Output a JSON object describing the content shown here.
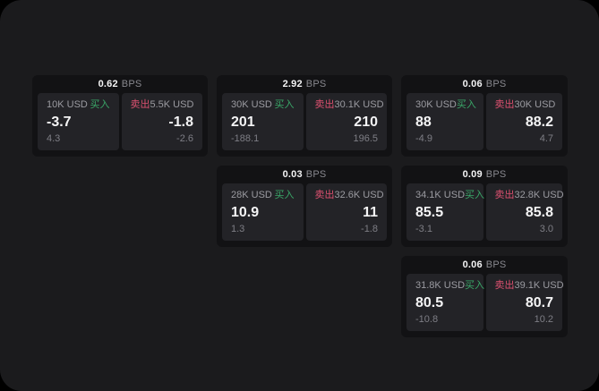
{
  "labels": {
    "buy": "买入",
    "sell": "卖出",
    "bps_unit": "BPS"
  },
  "colors": {
    "green": "#3aa768",
    "red": "#dd5170",
    "page_bg": "#1b1b1d",
    "card_bg": "#121214",
    "panel_bg": "#232327"
  },
  "cards": [
    {
      "row": 1,
      "col": 1,
      "bps": "0.62",
      "buy": {
        "amount": "10K USD",
        "main": "-3.7",
        "sub": "4.3"
      },
      "sell": {
        "amount": "5.5K USD",
        "main": "-1.8",
        "sub": "-2.6"
      }
    },
    {
      "row": 1,
      "col": 2,
      "bps": "2.92",
      "buy": {
        "amount": "30K USD",
        "main": "201",
        "sub": "-188.1"
      },
      "sell": {
        "amount": "30.1K USD",
        "main": "210",
        "sub": "196.5"
      }
    },
    {
      "row": 1,
      "col": 3,
      "bps": "0.06",
      "buy": {
        "amount": "30K USD",
        "main": "88",
        "sub": "-4.9"
      },
      "sell": {
        "amount": "30K USD",
        "main": "88.2",
        "sub": "4.7"
      }
    },
    {
      "row": 2,
      "col": 2,
      "bps": "0.03",
      "buy": {
        "amount": "28K USD",
        "main": "10.9",
        "sub": "1.3"
      },
      "sell": {
        "amount": "32.6K USD",
        "main": "11",
        "sub": "-1.8"
      }
    },
    {
      "row": 2,
      "col": 3,
      "bps": "0.09",
      "buy": {
        "amount": "34.1K USD",
        "main": "85.5",
        "sub": "-3.1"
      },
      "sell": {
        "amount": "32.8K USD",
        "main": "85.8",
        "sub": "3.0"
      }
    },
    {
      "row": 3,
      "col": 3,
      "bps": "0.06",
      "buy": {
        "amount": "31.8K USD",
        "main": "80.5",
        "sub": "-10.8"
      },
      "sell": {
        "amount": "39.1K USD",
        "main": "80.7",
        "sub": "10.2"
      }
    }
  ]
}
